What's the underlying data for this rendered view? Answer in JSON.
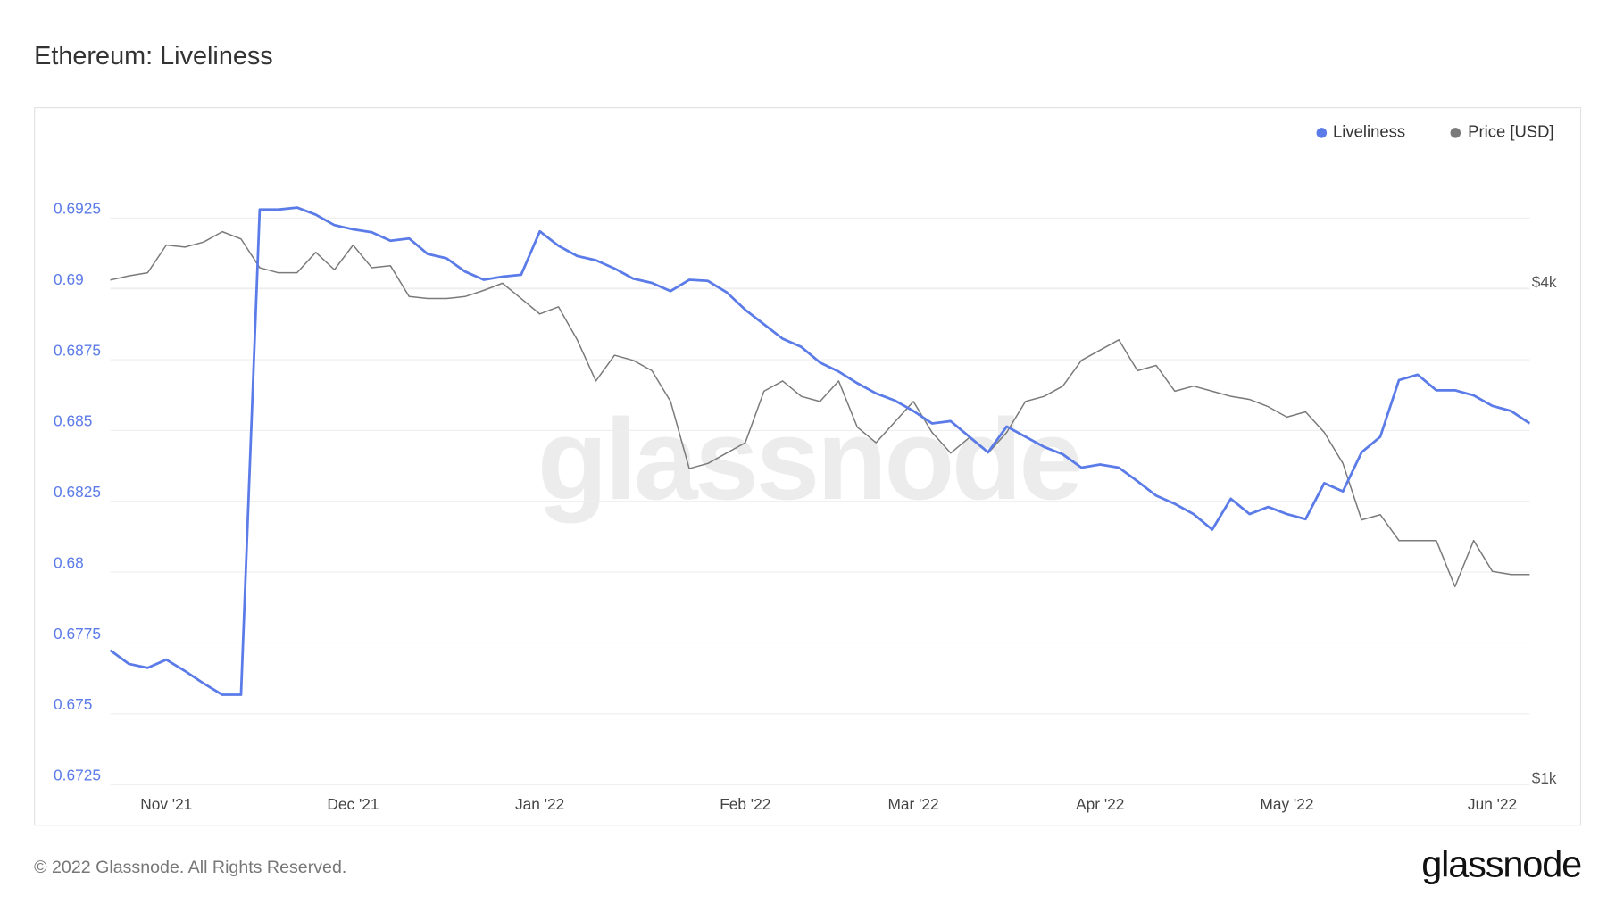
{
  "chart_data": {
    "type": "line",
    "title": "Ethereum: Liveliness",
    "watermark": "glassnode",
    "categories": [
      null,
      null,
      null,
      "Nov '21",
      null,
      null,
      null,
      null,
      null,
      null,
      null,
      null,
      null,
      "Dec '21",
      null,
      null,
      null,
      null,
      null,
      null,
      null,
      null,
      null,
      "Jan '22",
      null,
      null,
      null,
      null,
      null,
      null,
      null,
      null,
      null,
      null,
      "Feb '22",
      null,
      null,
      null,
      null,
      null,
      null,
      null,
      null,
      "Mar '22",
      null,
      null,
      null,
      null,
      null,
      null,
      null,
      null,
      null,
      "Apr '22",
      null,
      null,
      null,
      null,
      null,
      null,
      null,
      null,
      null,
      "May '22",
      null,
      null,
      null,
      null,
      null,
      null,
      null,
      null,
      null,
      null,
      "Jun '22",
      null,
      null
    ],
    "series": [
      {
        "name": "Liveliness",
        "color": "#5b7be8",
        "axis": "y",
        "values": [
          0.67724,
          0.67676,
          0.67662,
          0.67691,
          0.67651,
          0.67607,
          0.67567,
          0.67567,
          0.6928,
          0.6928,
          0.69287,
          0.69262,
          0.69225,
          0.6921,
          0.692,
          0.6917,
          0.69178,
          0.69123,
          0.69108,
          0.69061,
          0.69032,
          0.69043,
          0.6905,
          0.69203,
          0.69152,
          0.69116,
          0.69101,
          0.69072,
          0.69036,
          0.69021,
          0.68992,
          0.69032,
          0.69028,
          0.68988,
          0.68926,
          0.68875,
          0.68824,
          0.68795,
          0.6874,
          0.68708,
          0.68667,
          0.68631,
          0.68606,
          0.68569,
          0.68525,
          0.68533,
          0.68478,
          0.68423,
          0.68514,
          0.68478,
          0.68442,
          0.68416,
          0.68369,
          0.6838,
          0.68369,
          0.68321,
          0.6827,
          0.68241,
          0.68205,
          0.6815,
          0.68259,
          0.68205,
          0.6823,
          0.68205,
          0.68187,
          0.68314,
          0.68285,
          0.68423,
          0.68478,
          0.68678,
          0.68697,
          0.68642,
          0.68642,
          0.68624,
          0.68587,
          0.68569,
          0.68525
        ]
      },
      {
        "name": "Price [USD]",
        "color": "#7a7a7a",
        "axis": "y2",
        "values": [
          4093,
          4140,
          4176,
          4512,
          4487,
          4551,
          4684,
          4590,
          4236,
          4176,
          4176,
          4422,
          4212,
          4512,
          4236,
          4260,
          3908,
          3886,
          3886,
          3908,
          3976,
          4056,
          3886,
          3722,
          3797,
          3463,
          3087,
          3317,
          3270,
          3177,
          2915,
          2417,
          2452,
          2524,
          2598,
          3000,
          3087,
          2957,
          2915,
          3087,
          2713,
          2598,
          2752,
          2915,
          2674,
          2524,
          2636,
          2524,
          2674,
          2915,
          2957,
          3043,
          3270,
          3365,
          3463,
          3177,
          3224,
          3000,
          3043,
          3000,
          2957,
          2932,
          2873,
          2791,
          2832,
          2674,
          2452,
          2094,
          2125,
          1977,
          1977,
          1977,
          1738,
          1977,
          1814,
          1798,
          1798
        ]
      }
    ],
    "ylim": [
      0.6725,
      0.695
    ],
    "yticks": [
      0.6725,
      0.675,
      0.6775,
      0.68,
      0.6825,
      0.685,
      0.6875,
      0.69,
      0.6925
    ],
    "y2lim": [
      1000,
      5930
    ],
    "y2ticks": [
      {
        "value": 1000,
        "label": "$1k"
      },
      {
        "value": 4000,
        "label": "$4k"
      }
    ],
    "y2log": true,
    "grid": true,
    "legend": "top-right"
  },
  "footer": {
    "copyright": "© 2022 Glassnode. All Rights Reserved.",
    "logo": "glassnode"
  }
}
